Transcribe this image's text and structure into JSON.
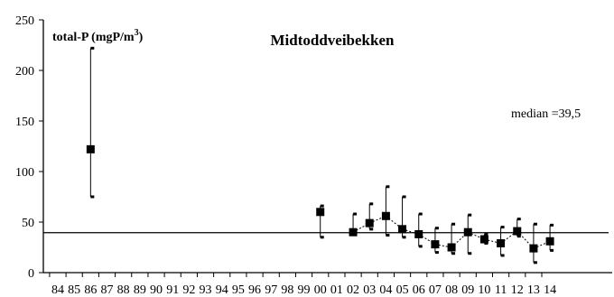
{
  "chart_data": {
    "type": "scatter",
    "title": "Midtoddveibekken",
    "ylabel_main": "total-P (mgP/m",
    "ylabel_sup": "3",
    "ylabel_close": ")",
    "annotation": "median =39,5",
    "median": 39.5,
    "ylim": [
      0,
      250
    ],
    "yticks": [
      0,
      50,
      100,
      150,
      200,
      250
    ],
    "xticks": [
      "84",
      "85",
      "86",
      "87",
      "88",
      "89",
      "90",
      "91",
      "92",
      "93",
      "94",
      "95",
      "96",
      "97",
      "98",
      "99",
      "00",
      "01",
      "02",
      "03",
      "04",
      "05",
      "06",
      "07",
      "08",
      "09",
      "10",
      "11",
      "12",
      "13",
      "14"
    ],
    "points": [
      {
        "year": "86",
        "value": 122,
        "min": 75,
        "max": 222
      },
      {
        "year": "00",
        "value": 60,
        "min": 35,
        "max": 66
      },
      {
        "year": "02",
        "value": 40,
        "min": 40,
        "max": 58
      },
      {
        "year": "03",
        "value": 49,
        "min": 43,
        "max": 68
      },
      {
        "year": "04",
        "value": 56,
        "min": 37,
        "max": 85
      },
      {
        "year": "05",
        "value": 43,
        "min": 35,
        "max": 75
      },
      {
        "year": "06",
        "value": 38,
        "min": 26,
        "max": 58
      },
      {
        "year": "07",
        "value": 28,
        "min": 20,
        "max": 44
      },
      {
        "year": "08",
        "value": 25,
        "min": 19,
        "max": 48
      },
      {
        "year": "09",
        "value": 40,
        "min": 19,
        "max": 57
      },
      {
        "year": "10",
        "value": 33,
        "min": 29,
        "max": 38
      },
      {
        "year": "11",
        "value": 29,
        "min": 17,
        "max": 45
      },
      {
        "year": "12",
        "value": 41,
        "min": 36,
        "max": 53
      },
      {
        "year": "13",
        "value": 24,
        "min": 10,
        "max": 48
      },
      {
        "year": "14",
        "value": 31,
        "min": 22,
        "max": 47
      }
    ],
    "grid": false,
    "colors": {
      "marker": "#000000",
      "line": "#000000"
    }
  }
}
